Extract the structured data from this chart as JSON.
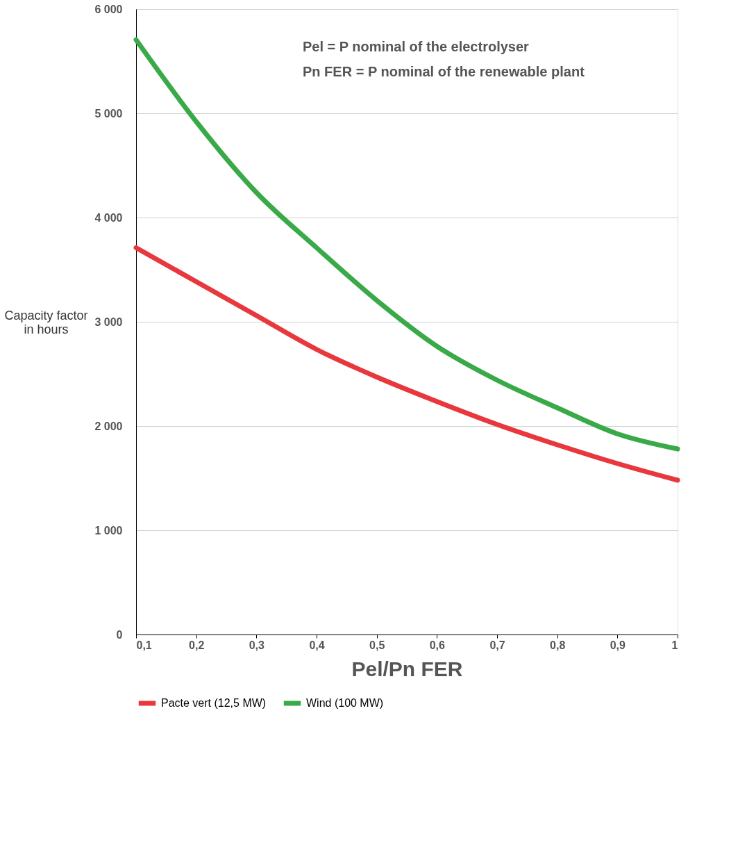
{
  "chart_data": {
    "type": "line",
    "xlabel": "Pel/Pn FER",
    "ylabel": "Capacity factor\nin hours",
    "x": [
      0.1,
      0.2,
      0.3,
      0.4,
      0.5,
      0.6,
      0.7,
      0.8,
      0.9,
      1.0
    ],
    "series": [
      {
        "name": "Pacte vert (12,5 MW)",
        "color": "#e8383d",
        "values": [
          3710,
          3385,
          3060,
          2735,
          2470,
          2235,
          2015,
          1820,
          1640,
          1480
        ]
      },
      {
        "name": "Wind  (100 MW)",
        "color": "#3aaa48",
        "values": [
          5705,
          4920,
          4240,
          3710,
          3205,
          2765,
          2440,
          2175,
          1925,
          1780
        ]
      }
    ],
    "xlim": [
      0.1,
      1.0
    ],
    "xticks": [
      {
        "value": 0.1,
        "label": "0,1"
      },
      {
        "value": 0.2,
        "label": "0,2"
      },
      {
        "value": 0.3,
        "label": "0,3"
      },
      {
        "value": 0.4,
        "label": "0,4"
      },
      {
        "value": 0.5,
        "label": "0,5"
      },
      {
        "value": 0.6,
        "label": "0,6"
      },
      {
        "value": 0.7,
        "label": "0,7"
      },
      {
        "value": 0.8,
        "label": "0,8"
      },
      {
        "value": 0.9,
        "label": "0,9"
      },
      {
        "value": 1,
        "label": "1"
      }
    ],
    "ylim": [
      0,
      6000
    ],
    "yticks": [
      0,
      {
        "value": 1000,
        "label": "1 000"
      },
      {
        "value": 2000,
        "label": "2 000"
      },
      {
        "value": 3000,
        "label": "3 000"
      },
      {
        "value": 4000,
        "label": "4 000"
      },
      {
        "value": 5000,
        "label": "5 000"
      },
      {
        "value": 6000,
        "label": "6 000"
      }
    ],
    "annotations": [
      "Pel = P nominal of the electrolyser",
      "Pn FER = P nominal of the renewable plant"
    ],
    "grid": "y",
    "legend": "bottom",
    "line_style": "solid"
  }
}
